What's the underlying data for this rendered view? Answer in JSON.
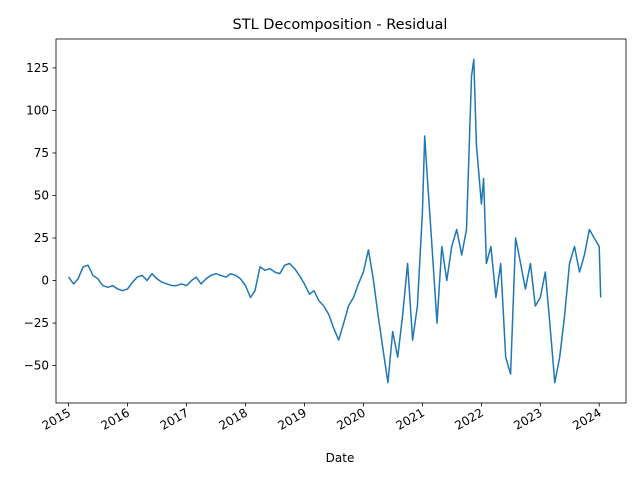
{
  "chart_data": {
    "type": "line",
    "title": "STL Decomposition - Residual",
    "xlabel": "Date",
    "ylabel": "",
    "xlim": [
      "2014-10-15",
      "2024-06-15"
    ],
    "ylim": [
      -72,
      142
    ],
    "x_ticks": [
      "2015",
      "2016",
      "2017",
      "2018",
      "2019",
      "2020",
      "2021",
      "2022",
      "2023",
      "2024"
    ],
    "y_ticks": [
      "−50",
      "−25",
      "0",
      "25",
      "50",
      "75",
      "100",
      "125"
    ],
    "y_tick_values": [
      -50,
      -25,
      0,
      25,
      50,
      75,
      100,
      125
    ],
    "grid": false,
    "legend": "none",
    "colors": {
      "line": "#1f77b4",
      "axis": "#000000",
      "background": "#ffffff"
    },
    "series": [
      {
        "x": [
          "2015-01-01",
          "2015-02-01",
          "2015-03-01",
          "2015-04-01",
          "2015-05-01",
          "2015-06-01",
          "2015-07-01",
          "2015-08-01",
          "2015-09-01",
          "2015-10-01",
          "2015-11-01",
          "2015-12-01",
          "2016-01-01",
          "2016-02-01",
          "2016-03-01",
          "2016-04-01",
          "2016-05-01",
          "2016-06-01",
          "2016-07-01",
          "2016-08-01",
          "2016-09-01",
          "2016-10-01",
          "2016-11-01",
          "2016-12-01",
          "2017-01-01",
          "2017-02-01",
          "2017-03-01",
          "2017-04-01",
          "2017-05-01",
          "2017-06-01",
          "2017-07-01",
          "2017-08-01",
          "2017-09-01",
          "2017-10-01",
          "2017-11-01",
          "2017-12-01",
          "2018-01-01",
          "2018-02-01",
          "2018-03-01",
          "2018-04-01",
          "2018-05-01",
          "2018-06-01",
          "2018-07-01",
          "2018-08-01",
          "2018-09-01",
          "2018-10-01",
          "2018-11-01",
          "2018-12-01",
          "2019-01-01",
          "2019-02-01",
          "2019-03-01",
          "2019-04-01",
          "2019-05-01",
          "2019-06-01",
          "2019-07-01",
          "2019-08-01",
          "2019-09-01",
          "2019-10-01",
          "2019-11-01",
          "2019-12-01",
          "2020-01-01",
          "2020-02-01",
          "2020-03-01",
          "2020-04-01",
          "2020-05-01",
          "2020-06-01",
          "2020-07-01",
          "2020-08-01",
          "2020-09-01",
          "2020-10-01",
          "2020-11-01",
          "2020-12-01",
          "2021-01-01",
          "2021-01-15",
          "2021-02-01",
          "2021-03-01",
          "2021-04-01",
          "2021-05-01",
          "2021-06-01",
          "2021-07-01",
          "2021-08-01",
          "2021-09-01",
          "2021-10-01",
          "2021-11-01",
          "2021-11-15",
          "2021-12-01",
          "2022-01-01",
          "2022-01-15",
          "2022-02-01",
          "2022-03-01",
          "2022-04-01",
          "2022-05-01",
          "2022-06-01",
          "2022-07-01",
          "2022-08-01",
          "2022-09-01",
          "2022-10-01",
          "2022-11-01",
          "2022-12-01",
          "2023-01-01",
          "2023-02-01",
          "2023-03-01",
          "2023-04-01",
          "2023-05-01",
          "2023-06-01",
          "2023-07-01",
          "2023-08-01",
          "2023-09-01",
          "2023-10-01",
          "2023-11-01",
          "2023-12-01",
          "2024-01-01",
          "2024-01-10"
        ],
        "values": [
          2,
          -2,
          1,
          8,
          9,
          3,
          1,
          -3,
          -4,
          -3,
          -5,
          -6,
          -5,
          -1,
          2,
          3,
          0,
          4,
          1,
          -1,
          -2,
          -3,
          -3,
          -2,
          -3,
          0,
          2,
          -2,
          1,
          3,
          4,
          3,
          2,
          4,
          3,
          1,
          -3,
          -10,
          -6,
          8,
          6,
          7,
          5,
          4,
          9,
          10,
          7,
          3,
          -2,
          -8,
          -6,
          -12,
          -15,
          -20,
          -28,
          -35,
          -25,
          -15,
          -10,
          -2,
          5,
          18,
          2,
          -20,
          -40,
          -60,
          -30,
          -45,
          -20,
          10,
          -35,
          -15,
          40,
          85,
          60,
          20,
          -25,
          20,
          0,
          20,
          30,
          15,
          30,
          120,
          130,
          80,
          45,
          60,
          10,
          20,
          -10,
          10,
          -45,
          -55,
          25,
          10,
          -5,
          10,
          -15,
          -10,
          5,
          -25,
          -60,
          -45,
          -20,
          10,
          20,
          5,
          15,
          30,
          25,
          20,
          -10
        ]
      }
    ]
  }
}
